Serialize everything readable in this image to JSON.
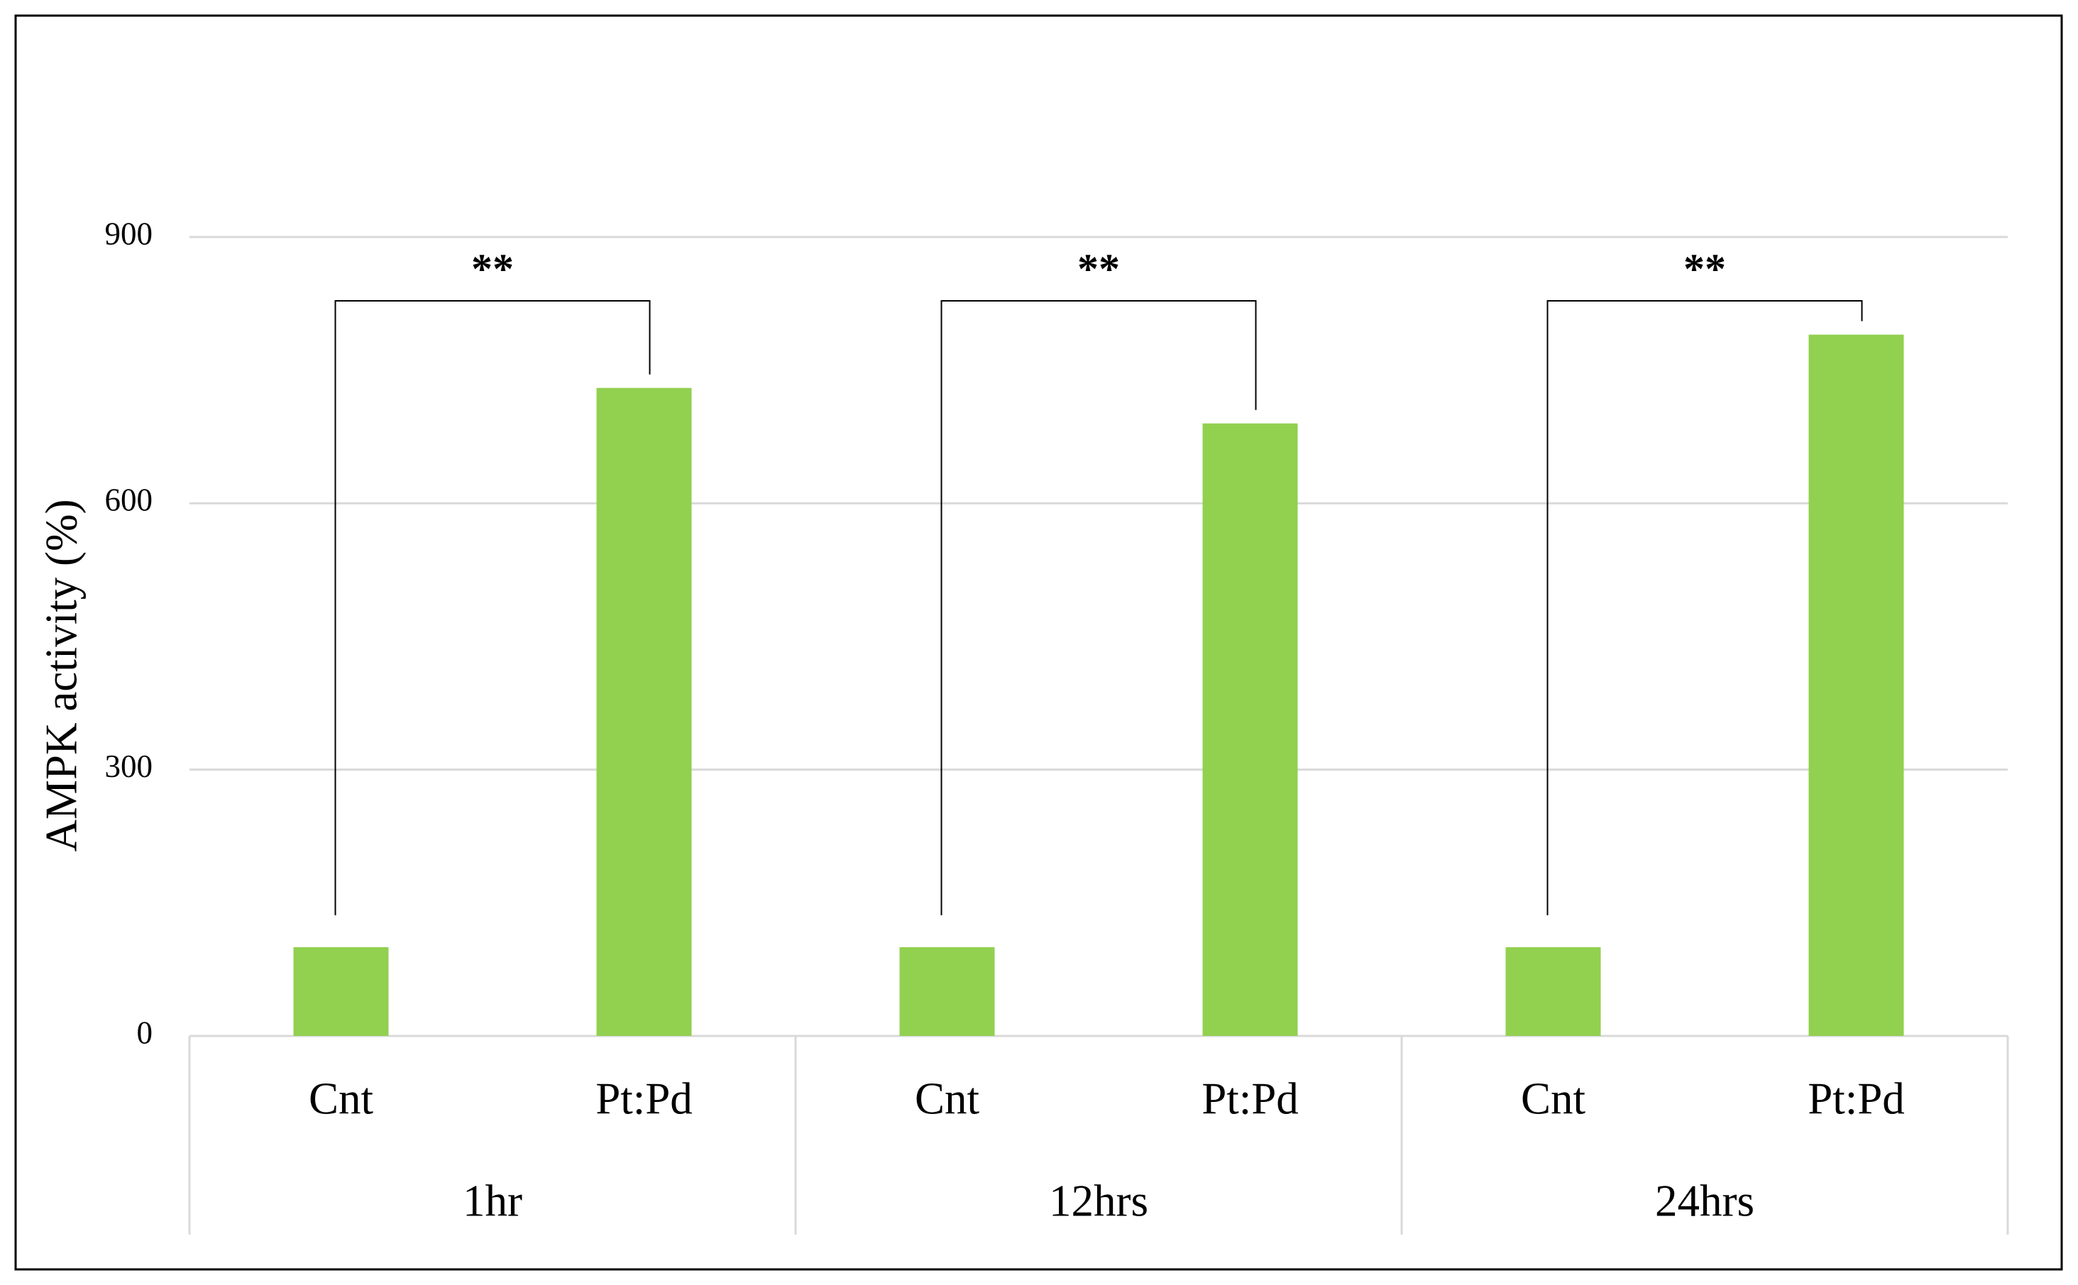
{
  "chart_data": {
    "type": "bar",
    "y_label": "AMPK activity (%)",
    "categories": [
      "Cnt",
      "Pt:Pd",
      "Cnt",
      "Pt:Pd",
      "Cnt",
      "Pt:Pd"
    ],
    "groups": [
      "1hr",
      "12hrs",
      "24hrs"
    ],
    "values": [
      100,
      730,
      100,
      690,
      100,
      790
    ],
    "color": "#92d050",
    "ylim": [
      0,
      900
    ],
    "yticks": [
      0,
      300,
      600,
      900
    ],
    "grid": true,
    "annotations": [
      "**",
      "**",
      "**"
    ]
  }
}
